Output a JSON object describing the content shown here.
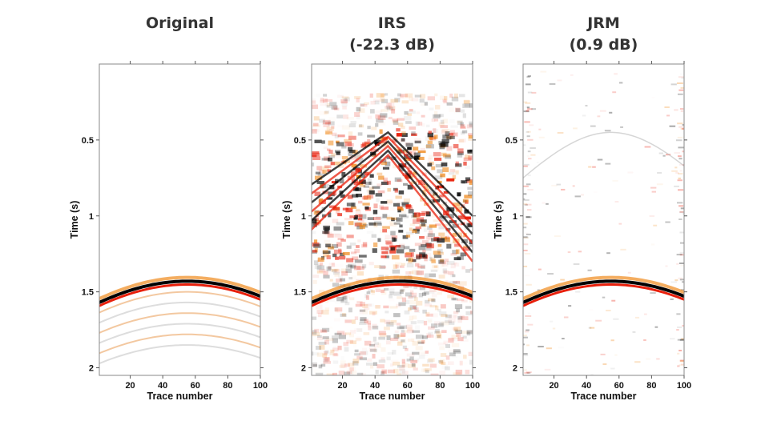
{
  "chart_data": [
    {
      "type": "heatmap",
      "title_lines": [
        "Original"
      ],
      "xlabel": "Trace number",
      "ylabel": "Time (s)",
      "xlim": [
        1,
        100
      ],
      "ylim": [
        0,
        2.05
      ],
      "xticks": [
        "20",
        "40",
        "60",
        "80",
        "100"
      ],
      "yticks": [
        "0.5",
        "1",
        "1.5",
        "2"
      ],
      "reflection": {
        "apex_trace": 55,
        "apex_time_s": 1.43,
        "time_at_trace_1_s": 1.57,
        "time_at_trace_100_s": 1.53
      },
      "noise_level": 0
    },
    {
      "type": "heatmap",
      "title_lines": [
        "IRS",
        "(-22.3 dB)"
      ],
      "xlabel": "Trace number",
      "ylabel": "Time (s)",
      "xlim": [
        1,
        100
      ],
      "ylim": [
        0,
        2.05
      ],
      "xticks": [
        "20",
        "40",
        "60",
        "80",
        "100"
      ],
      "yticks": [
        "0.5",
        "1",
        "1.5",
        "2"
      ],
      "reflection": {
        "apex_trace": 55,
        "apex_time_s": 1.43,
        "time_at_trace_1_s": 1.57,
        "time_at_trace_100_s": 1.53
      },
      "noise_level": 1
    },
    {
      "type": "heatmap",
      "title_lines": [
        "JRM",
        "(0.9 dB)"
      ],
      "xlabel": "Trace number",
      "ylabel": "Time (s)",
      "xlim": [
        1,
        100
      ],
      "ylim": [
        0,
        2.05
      ],
      "xticks": [
        "20",
        "40",
        "60",
        "80",
        "100"
      ],
      "yticks": [
        "0.5",
        "1",
        "1.5",
        "2"
      ],
      "reflection": {
        "apex_trace": 55,
        "apex_time_s": 1.43,
        "time_at_trace_1_s": 1.57,
        "time_at_trace_100_s": 1.53
      },
      "noise_level": 0.15
    }
  ],
  "colors": {
    "positive": "#e8200c",
    "positive_weak": "#f08a1c",
    "negative": "#000000",
    "frame": "#888888"
  }
}
